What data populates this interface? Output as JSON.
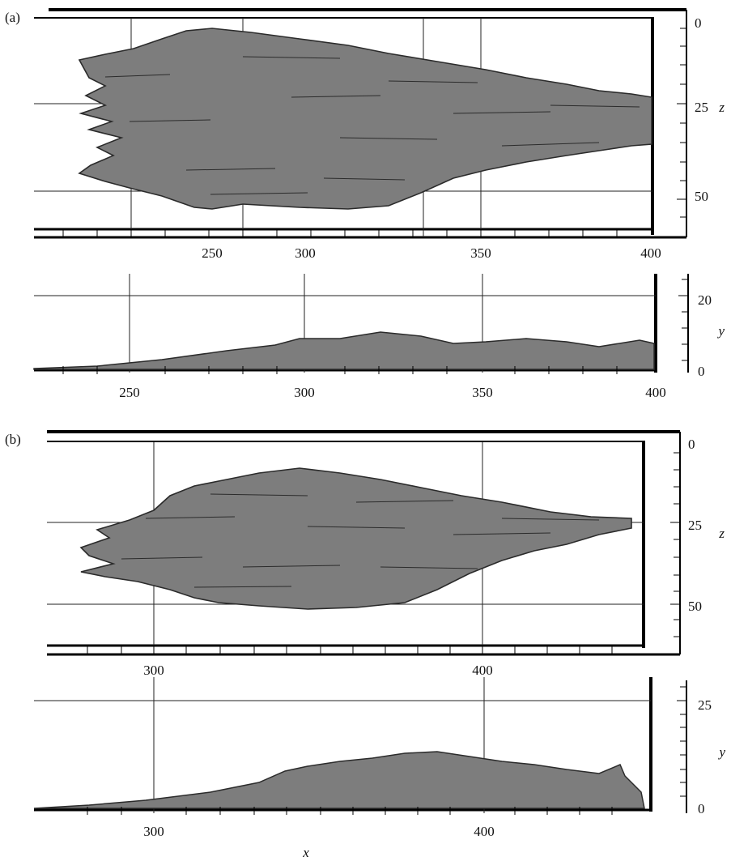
{
  "figure": {
    "panels": [
      {
        "label": "(a)",
        "views": [
          {
            "kind": "top",
            "x_ticks": [
              "250",
              "300",
              "350",
              "400"
            ],
            "side_ticks": [
              "0",
              "25",
              "50"
            ],
            "side_axis_label": "z"
          },
          {
            "kind": "side",
            "x_ticks": [
              "250",
              "300",
              "350",
              "400"
            ],
            "side_ticks": [
              "20",
              "0"
            ],
            "side_axis_label": "y"
          }
        ]
      },
      {
        "label": "(b)",
        "views": [
          {
            "kind": "top",
            "x_ticks": [
              "300",
              "400"
            ],
            "side_ticks": [
              "0",
              "25",
              "50"
            ],
            "side_axis_label": "z"
          },
          {
            "kind": "side",
            "x_ticks": [
              "300",
              "400"
            ],
            "side_ticks": [
              "25",
              "0"
            ],
            "side_axis_label": "y"
          }
        ]
      }
    ],
    "x_axis_label": "x",
    "colors": {
      "spot": "#7d7d7d",
      "spot_edge": "#2b2b2b",
      "frame": "#000000",
      "grid": "#222222"
    }
  }
}
